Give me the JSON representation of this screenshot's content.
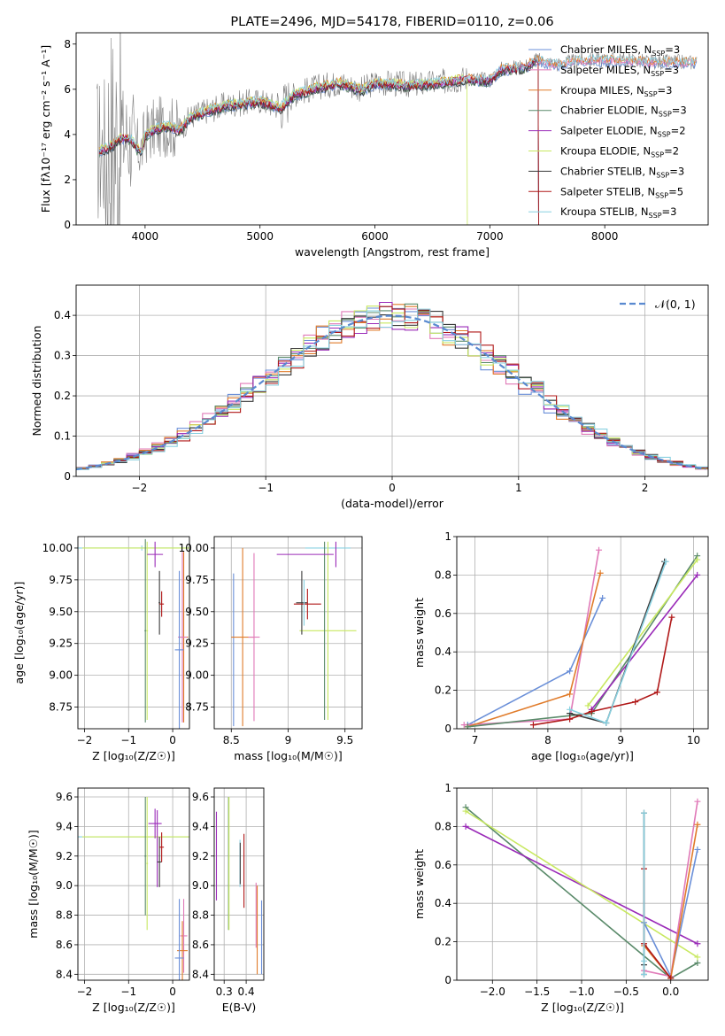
{
  "figure": {
    "background": "#ffffff"
  },
  "legend_colors": {
    "Chabrier MILES": "#6a8fd8",
    "Salpeter MILES": "#e07ab8",
    "Kroupa MILES": "#e07b2a",
    "Chabrier ELODIE": "#5a8a6a",
    "Salpeter ELODIE": "#9a2ab8",
    "Kroupa ELODIE": "#c8e860",
    "Chabrier STELIB": "#3a3a3a",
    "Salpeter STELIB": "#b01818",
    "Kroupa STELIB": "#88d0e0"
  },
  "chart_data": [
    {
      "id": "spectrum",
      "type": "line",
      "title": "PLATE=2496, MJD=54178, FIBERID=0110, z=0.06",
      "xlabel": "wavelength [Angstrom, rest frame]",
      "ylabel": "Flux [fλ10⁻¹⁷ erg cm⁻² s⁻¹ A⁻¹]",
      "xlim": [
        3400,
        8900
      ],
      "ylim": [
        0,
        8.5
      ],
      "xticks": [
        4000,
        5000,
        6000,
        7000,
        8000
      ],
      "yticks": [
        0,
        2,
        4,
        6,
        8
      ],
      "grid": false,
      "legend_position": "right",
      "observed_color": "#808080",
      "continuum_nodes": [
        [
          3600,
          3.3
        ],
        [
          3700,
          3.5
        ],
        [
          3800,
          3.9
        ],
        [
          3880,
          3.8
        ],
        [
          3930,
          3.4
        ],
        [
          3970,
          3.3
        ],
        [
          4000,
          4.0
        ],
        [
          4100,
          4.3
        ],
        [
          4200,
          4.4
        ],
        [
          4300,
          4.2
        ],
        [
          4400,
          4.8
        ],
        [
          4500,
          5.0
        ],
        [
          4700,
          5.3
        ],
        [
          4860,
          5.4
        ],
        [
          5000,
          5.5
        ],
        [
          5175,
          5.2
        ],
        [
          5300,
          5.8
        ],
        [
          5500,
          6.1
        ],
        [
          5700,
          6.3
        ],
        [
          5890,
          6.0
        ],
        [
          6000,
          6.3
        ],
        [
          6300,
          6.2
        ],
        [
          6563,
          6.3
        ],
        [
          6800,
          6.5
        ],
        [
          7000,
          6.4
        ],
        [
          7100,
          6.9
        ],
        [
          7300,
          7.0
        ],
        [
          7400,
          7.3
        ],
        [
          7600,
          7.1
        ],
        [
          7800,
          7.3
        ],
        [
          8200,
          7.3
        ],
        [
          8400,
          7.2
        ],
        [
          8800,
          7.2
        ]
      ],
      "models_end_x": [
        8800,
        8800,
        8800,
        7420,
        7420,
        6800,
        7420,
        7420,
        8800
      ],
      "legend": [
        {
          "label": "Chabrier MILES, N",
          "sub": "SSP",
          "suffix": "=3",
          "color": "#6a8fd8"
        },
        {
          "label": "Salpeter MILES, N",
          "sub": "SSP",
          "suffix": "=3",
          "color": "#e07ab8"
        },
        {
          "label": "Kroupa MILES, N",
          "sub": "SSP",
          "suffix": "=3",
          "color": "#e07b2a"
        },
        {
          "label": "Chabrier ELODIE, N",
          "sub": "SSP",
          "suffix": "=3",
          "color": "#5a8a6a"
        },
        {
          "label": "Salpeter ELODIE, N",
          "sub": "SSP",
          "suffix": "=2",
          "color": "#9a2ab8"
        },
        {
          "label": "Kroupa ELODIE, N",
          "sub": "SSP",
          "suffix": "=2",
          "color": "#c8e860"
        },
        {
          "label": "Chabrier STELIB, N",
          "sub": "SSP",
          "suffix": "=3",
          "color": "#3a3a3a"
        },
        {
          "label": "Salpeter STELIB, N",
          "sub": "SSP",
          "suffix": "=5",
          "color": "#b01818"
        },
        {
          "label": "Kroupa STELIB, N",
          "sub": "SSP",
          "suffix": "=3",
          "color": "#88d0e0"
        }
      ]
    },
    {
      "id": "residuals",
      "type": "histogram",
      "xlabel": "(data-model)/error",
      "ylabel": "Normed distribution",
      "xlim": [
        -2.5,
        2.5
      ],
      "ylim": [
        0,
        0.475
      ],
      "xticks": [
        -2,
        -1,
        0,
        1,
        2
      ],
      "yticks": [
        0.0,
        0.1,
        0.2,
        0.3,
        0.4
      ],
      "grid": true,
      "bin_width": 0.1,
      "reference": {
        "label": "𝒩(0, 1)",
        "color": "#5a8ad0",
        "dash": true
      },
      "legend_position": "top-right",
      "series_colors": [
        "#6a8fd8",
        "#e07ab8",
        "#e07b2a",
        "#5a8a6a",
        "#9a2ab8",
        "#c8e860",
        "#3a3a3a",
        "#b01818",
        "#88d0e0"
      ]
    },
    {
      "id": "age_vs_Z",
      "type": "errorbar",
      "xlabel": "Z [log₁₀(Z/Z☉)]",
      "ylabel": "age  [log₁₀(age/yr)]",
      "xlim": [
        -2.15,
        0.38
      ],
      "ylim": [
        8.58,
        10.09
      ],
      "xticks": [
        -2,
        -1,
        0
      ],
      "yticks": [
        8.75,
        9.0,
        9.25,
        9.5,
        9.75,
        10.0
      ],
      "ytick_labels": [
        "8.75",
        "9.00",
        "9.25",
        "9.50",
        "9.75",
        "10.00"
      ],
      "grid": true,
      "points": [
        {
          "color": "#88d0e0",
          "x": -0.7,
          "xerr": 1.45,
          "y": 10.0,
          "yerr": 0.02
        },
        {
          "color": "#c8e860",
          "x": -0.65,
          "xerr": 1.4,
          "y": 10.0,
          "yerr": 0.0
        },
        {
          "color": "#5a8a6a",
          "x": -0.62,
          "xerr": 0.02,
          "y": 9.35,
          "yerr": 0.72
        },
        {
          "color": "#c8e860",
          "x": -0.58,
          "xerr": 0.02,
          "y": 9.35,
          "yerr": 0.7
        },
        {
          "color": "#9a2ab8",
          "x": -0.4,
          "xerr": 0.18,
          "y": 9.95,
          "yerr": 0.1
        },
        {
          "color": "#3a3a3a",
          "x": -0.3,
          "xerr": 0.02,
          "y": 9.57,
          "yerr": 0.25
        },
        {
          "color": "#b01818",
          "x": -0.25,
          "xerr": 0.05,
          "y": 9.56,
          "yerr": 0.1
        },
        {
          "color": "#e07b2a",
          "x": 0.25,
          "xerr": 0.1,
          "y": 9.3,
          "yerr": 0.67
        },
        {
          "color": "#e07ab8",
          "x": 0.22,
          "xerr": 0.1,
          "y": 9.3,
          "yerr": 0.67
        },
        {
          "color": "#6a8fd8",
          "x": 0.15,
          "xerr": 0.1,
          "y": 9.2,
          "yerr": 0.62
        }
      ]
    },
    {
      "id": "age_vs_mass",
      "type": "errorbar",
      "xlabel": "mass [log₁₀(M/M☉)]",
      "ylabel": "",
      "xlim": [
        8.35,
        9.65
      ],
      "ylim": [
        8.58,
        10.09
      ],
      "xticks": [
        8.5,
        9.0,
        9.5
      ],
      "yticks": [
        8.75,
        9.0,
        9.25,
        9.5,
        9.75,
        10.0
      ],
      "ytick_labels": [
        "8.75",
        "9.00",
        "9.25",
        "9.50",
        "9.75",
        "10.00"
      ],
      "grid": true,
      "points": [
        {
          "color": "#6a8fd8",
          "x": 8.52,
          "xerr": 0.0,
          "y": 9.2,
          "yerr": 0.6
        },
        {
          "color": "#e07b2a",
          "x": 8.6,
          "xerr": 0.1,
          "y": 9.3,
          "yerr": 0.7
        },
        {
          "color": "#e07ab8",
          "x": 8.7,
          "xerr": 0.05,
          "y": 9.3,
          "yerr": 0.66
        },
        {
          "color": "#88d0e0",
          "x": 9.35,
          "xerr": 0.2,
          "y": 10.0,
          "yerr": 0.0
        },
        {
          "color": "#c8e860",
          "x": 9.35,
          "xerr": 0.25,
          "y": 9.35,
          "yerr": 0.7
        },
        {
          "color": "#5a8a6a",
          "x": 9.32,
          "xerr": 0.0,
          "y": 9.35,
          "yerr": 0.7
        },
        {
          "color": "#9a2ab8",
          "x": 9.15,
          "xerr": 0.25,
          "y": 9.95,
          "yerr": 0.0
        },
        {
          "color": "#9a2ab8",
          "x": 9.42,
          "xerr": 0.0,
          "y": 9.95,
          "yerr": 0.1
        },
        {
          "color": "#3a3a3a",
          "x": 9.12,
          "xerr": 0.05,
          "y": 9.57,
          "yerr": 0.25
        },
        {
          "color": "#b01818",
          "x": 9.17,
          "xerr": 0.12,
          "y": 9.56,
          "yerr": 0.12
        },
        {
          "color": "#88d0e0",
          "x": 9.14,
          "xerr": 0.0,
          "y": 9.57,
          "yerr": 0.18
        }
      ]
    },
    {
      "id": "weight_vs_age",
      "type": "line",
      "xlabel": "age  [log₁₀(age/yr)]",
      "ylabel": "mass weight",
      "xlim": [
        6.75,
        10.2
      ],
      "ylim": [
        0,
        1.0
      ],
      "xticks": [
        7,
        8,
        9,
        10
      ],
      "yticks": [
        0.0,
        0.2,
        0.4,
        0.6,
        0.8,
        1.0
      ],
      "grid": true,
      "series": [
        {
          "color": "#6a8fd8",
          "x": [
            6.9,
            8.3,
            8.75
          ],
          "y": [
            0.02,
            0.3,
            0.68
          ]
        },
        {
          "color": "#e07ab8",
          "x": [
            6.85,
            8.3,
            8.7
          ],
          "y": [
            0.02,
            0.05,
            0.93
          ]
        },
        {
          "color": "#e07b2a",
          "x": [
            6.9,
            8.3,
            8.72
          ],
          "y": [
            0.01,
            0.18,
            0.81
          ]
        },
        {
          "color": "#5a8a6a",
          "x": [
            6.9,
            8.6,
            10.05
          ],
          "y": [
            0.01,
            0.08,
            0.9
          ]
        },
        {
          "color": "#9a2ab8",
          "x": [
            8.6,
            10.05
          ],
          "y": [
            0.1,
            0.8
          ]
        },
        {
          "color": "#c8e860",
          "x": [
            8.55,
            10.05
          ],
          "y": [
            0.12,
            0.88
          ]
        },
        {
          "color": "#3a3a3a",
          "x": [
            8.3,
            8.8,
            9.6
          ],
          "y": [
            0.08,
            0.03,
            0.87
          ]
        },
        {
          "color": "#b01818",
          "x": [
            7.8,
            8.3,
            8.6,
            9.2,
            9.5,
            9.7
          ],
          "y": [
            0.02,
            0.05,
            0.09,
            0.14,
            0.19,
            0.58
          ]
        },
        {
          "color": "#88d0e0",
          "x": [
            8.3,
            8.8,
            9.62
          ],
          "y": [
            0.1,
            0.03,
            0.87
          ]
        }
      ]
    },
    {
      "id": "mass_vs_Z",
      "type": "errorbar",
      "xlabel": "Z [log₁₀(Z/Z☉)]",
      "ylabel": "mass [log₁₀(M/M☉)]",
      "xlim": [
        -2.15,
        0.38
      ],
      "ylim": [
        8.36,
        9.66
      ],
      "xticks": [
        -2,
        -1,
        0
      ],
      "yticks": [
        8.4,
        8.6,
        8.8,
        9.0,
        9.2,
        9.4,
        9.6
      ],
      "ytick_labels": [
        "8.4",
        "8.6",
        "8.8",
        "9.0",
        "9.2",
        "9.4",
        "9.6"
      ],
      "grid": true,
      "points": [
        {
          "color": "#88d0e0",
          "x": -0.7,
          "xerr": 1.45,
          "y": 9.33,
          "yerr": 0.0
        },
        {
          "color": "#c8e860",
          "x": -0.65,
          "xerr": 1.4,
          "y": 9.33,
          "yerr": 0.0
        },
        {
          "color": "#5a8a6a",
          "x": -0.62,
          "xerr": 0.02,
          "y": 9.2,
          "yerr": 0.4
        },
        {
          "color": "#c8e860",
          "x": -0.58,
          "xerr": 0.02,
          "y": 9.15,
          "yerr": 0.45
        },
        {
          "color": "#9a2ab8",
          "x": -0.4,
          "xerr": 0.15,
          "y": 9.42,
          "yerr": 0.1
        },
        {
          "color": "#9a2ab8",
          "x": -0.35,
          "xerr": 0.0,
          "y": 9.25,
          "yerr": 0.26
        },
        {
          "color": "#3a3a3a",
          "x": -0.3,
          "xerr": 0.05,
          "y": 9.16,
          "yerr": 0.17
        },
        {
          "color": "#b01818",
          "x": -0.25,
          "xerr": 0.05,
          "y": 9.26,
          "yerr": 0.1
        },
        {
          "color": "#e07ab8",
          "x": 0.25,
          "xerr": 0.08,
          "y": 8.66,
          "yerr": 0.25
        },
        {
          "color": "#e07b2a",
          "x": 0.22,
          "xerr": 0.12,
          "y": 8.56,
          "yerr": 0.2
        },
        {
          "color": "#6a8fd8",
          "x": 0.15,
          "xerr": 0.1,
          "y": 8.51,
          "yerr": 0.4
        }
      ]
    },
    {
      "id": "mass_vs_EBV",
      "type": "errorbar",
      "xlabel": "E(B-V)",
      "ylabel": "",
      "xlim": [
        0.255,
        0.48
      ],
      "ylim": [
        8.36,
        9.66
      ],
      "xticks": [
        0.3,
        0.4
      ],
      "yticks": [
        8.4,
        8.6,
        8.8,
        9.0,
        9.2,
        9.4,
        9.6
      ],
      "ytick_labels": [
        "8.4",
        "8.6",
        "8.8",
        "9.0",
        "9.2",
        "9.4",
        "9.6"
      ],
      "grid": true,
      "points": [
        {
          "color": "#9a2ab8",
          "x": 0.265,
          "xerr": 0.0,
          "y": 9.2,
          "yerr": 0.3
        },
        {
          "color": "#5a8a6a",
          "x": 0.32,
          "xerr": 0.0,
          "y": 9.15,
          "yerr": 0.45
        },
        {
          "color": "#c8e860",
          "x": 0.322,
          "xerr": 0.0,
          "y": 9.15,
          "yerr": 0.45
        },
        {
          "color": "#88d0e0",
          "x": 0.372,
          "xerr": 0.0,
          "y": 9.15,
          "yerr": 0.16
        },
        {
          "color": "#3a3a3a",
          "x": 0.373,
          "xerr": 0.0,
          "y": 9.15,
          "yerr": 0.14
        },
        {
          "color": "#b01818",
          "x": 0.39,
          "xerr": 0.0,
          "y": 9.1,
          "yerr": 0.25
        },
        {
          "color": "#e07ab8",
          "x": 0.445,
          "xerr": 0.0,
          "y": 8.8,
          "yerr": 0.22
        },
        {
          "color": "#e07b2a",
          "x": 0.45,
          "xerr": 0.0,
          "y": 8.7,
          "yerr": 0.3
        },
        {
          "color": "#6a8fd8",
          "x": 0.47,
          "xerr": 0.0,
          "y": 8.65,
          "yerr": 0.25
        }
      ]
    },
    {
      "id": "weight_vs_Z",
      "type": "line",
      "xlabel": "Z [log₁₀(Z/Z☉)]",
      "ylabel": "mass weight",
      "xlim": [
        -2.4,
        0.42
      ],
      "ylim": [
        0,
        1.0
      ],
      "xticks": [
        -2.0,
        -1.5,
        -1.0,
        -0.5,
        0.0
      ],
      "xtick_labels": [
        "−2.0",
        "−1.5",
        "−1.0",
        "−0.5",
        "0.0"
      ],
      "yticks": [
        0.0,
        0.2,
        0.4,
        0.6,
        0.8,
        1.0
      ],
      "grid": true,
      "series": [
        {
          "color": "#5a8a6a",
          "x": [
            -2.3,
            0.0,
            0.3
          ],
          "y": [
            0.9,
            0.01,
            0.09
          ]
        },
        {
          "color": "#9a2ab8",
          "x": [
            -2.3,
            0.3
          ],
          "y": [
            0.8,
            0.19
          ]
        },
        {
          "color": "#c8e860",
          "x": [
            -2.3,
            0.3
          ],
          "y": [
            0.88,
            0.12
          ]
        },
        {
          "color": "#6a8fd8",
          "x": [
            -0.3,
            0.0,
            0.3
          ],
          "y": [
            0.3,
            0.02,
            0.68
          ]
        },
        {
          "color": "#e07ab8",
          "x": [
            -0.3,
            0.0,
            0.3
          ],
          "y": [
            0.05,
            0.02,
            0.93
          ]
        },
        {
          "color": "#e07b2a",
          "x": [
            -0.3,
            0.0,
            0.3
          ],
          "y": [
            0.18,
            0.01,
            0.81
          ]
        },
        {
          "color": "#3a3a3a",
          "x": [
            -0.3,
            -0.3,
            -0.3
          ],
          "y": [
            0.08,
            0.03,
            0.87
          ]
        },
        {
          "color": "#b01818",
          "x": [
            -0.3,
            -0.3,
            0.0
          ],
          "y": [
            0.58,
            0.19,
            0.01
          ]
        },
        {
          "color": "#88d0e0",
          "x": [
            -0.3,
            -0.3,
            -0.3
          ],
          "y": [
            0.1,
            0.03,
            0.87
          ]
        }
      ]
    }
  ]
}
